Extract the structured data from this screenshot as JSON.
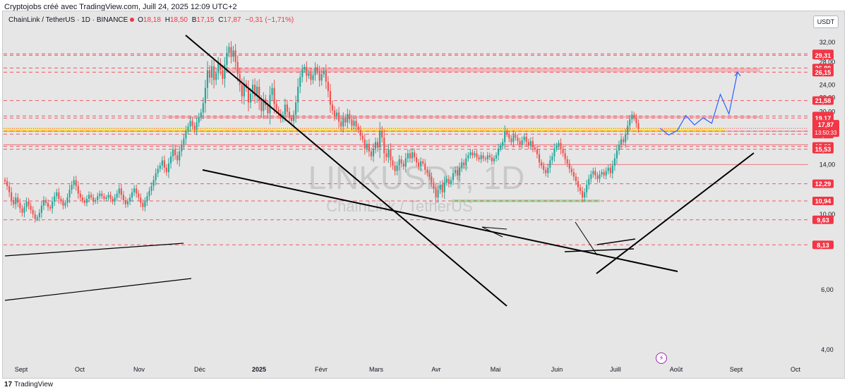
{
  "header": {
    "credit": "Cryptojobs créé avec TradingView.com, Juill 24, 2025 12:09 UTC+2"
  },
  "legend": {
    "symbol": "ChainLink / TetherUS · 1D · BINANCE",
    "o_label": "O",
    "o_value": "18,18",
    "h_label": "H",
    "h_value": "18,50",
    "b_label": "B",
    "b_value": "17,15",
    "c_label": "C",
    "c_value": "17,87",
    "change": "−0,31 (−1,71%)"
  },
  "unit_label": "USDT",
  "watermark": {
    "ticker": "LINKUSDT, 1D",
    "name": "ChainLink / TetherUS"
  },
  "footer": {
    "logo": "17",
    "brand": "TradingView"
  },
  "icons": {
    "indicator": "lightning-icon"
  },
  "colors": {
    "up": "#26a69a",
    "down": "#ef5350",
    "resistance": "#f23645",
    "projection": "#2962ff",
    "yellow_zone": "#ffeb3b",
    "green_zone": "#4caf50"
  },
  "chart_data": {
    "type": "candlestick",
    "y_axis": {
      "scale": "log",
      "ticks": [
        "32,00",
        "28,00",
        "24,00",
        "22,00",
        "20,00",
        "14,00",
        "10,00",
        "6,00",
        "4,00"
      ],
      "range": [
        3.6,
        40
      ]
    },
    "x_axis": {
      "labels": [
        "Sept",
        "Oct",
        "Nov",
        "Déc",
        "2025",
        "Févr",
        "Mars",
        "Avr",
        "Mai",
        "Juin",
        "Juill",
        "Août",
        "Sept",
        "Oct"
      ]
    },
    "price_lines": [
      {
        "label": "29,60",
        "value": 29.6
      },
      {
        "label": "29,31",
        "value": 29.31
      },
      {
        "label": "26,89",
        "value": 26.89
      },
      {
        "label": "26,15",
        "value": 26.15
      },
      {
        "label": "21,58",
        "value": 21.58
      },
      {
        "label": "19,44",
        "value": 19.44
      },
      {
        "label": "19,17",
        "value": 19.17
      },
      {
        "label": "17,54",
        "value": 17.54
      },
      {
        "label": "17,19",
        "value": 17.19
      },
      {
        "label": "15,83",
        "value": 15.83
      },
      {
        "label": "15,53",
        "value": 15.53
      },
      {
        "label": "12,29",
        "value": 12.29
      },
      {
        "label": "10,94",
        "value": 10.94
      },
      {
        "label": "9,63",
        "value": 9.63
      },
      {
        "label": "8,13",
        "value": 8.13
      }
    ],
    "current_price": {
      "label": "17,87",
      "value": 17.87,
      "countdown": "13:50:33"
    },
    "zones": [
      {
        "kind": "red",
        "from": 26.15,
        "to": 26.89
      },
      {
        "kind": "red",
        "from": 19.17,
        "to": 19.44
      },
      {
        "kind": "yellow",
        "from": 17.54,
        "to": 17.87
      },
      {
        "kind": "green",
        "from": 10.85,
        "to": 11.05
      }
    ],
    "series": [
      {
        "type": "candles",
        "closes": [
          12.5,
          12.1,
          11.6,
          11.0,
          10.7,
          11.2,
          10.8,
          10.4,
          10.1,
          10.5,
          10.9,
          10.6,
          10.3,
          10.0,
          9.7,
          9.8,
          10.1,
          10.6,
          11.0,
          10.8,
          10.5,
          10.4,
          10.9,
          11.3,
          11.6,
          11.1,
          10.9,
          10.6,
          10.8,
          11.2,
          11.8,
          12.2,
          12.6,
          12.1,
          11.5,
          11.2,
          11.0,
          10.8,
          11.1,
          11.4,
          11.2,
          10.9,
          11.0,
          11.3,
          11.5,
          11.3,
          11.1,
          11.2,
          11.4,
          11.1,
          10.9,
          11.2,
          11.5,
          11.9,
          11.4,
          11.0,
          10.7,
          10.9,
          11.2,
          11.6,
          11.9,
          11.5,
          11.2,
          10.8,
          10.5,
          10.9,
          11.3,
          11.7,
          12.1,
          12.6,
          13.2,
          13.6,
          13.9,
          14.4,
          13.7,
          13.3,
          14.1,
          14.8,
          15.5,
          14.9,
          14.4,
          15.3,
          16.0,
          16.7,
          17.6,
          18.1,
          18.8,
          18.2,
          17.7,
          18.6,
          19.3,
          19.9,
          21.2,
          23.5,
          26.5,
          25.2,
          27.2,
          24.8,
          26.0,
          27.8,
          26.5,
          25.0,
          27.5,
          29.8,
          31.0,
          29.0,
          30.3,
          28.0,
          25.8,
          24.0,
          22.2,
          24.2,
          23.5,
          21.3,
          22.6,
          24.0,
          22.2,
          23.7,
          21.5,
          20.1,
          21.8,
          20.9,
          19.8,
          22.4,
          23.5,
          21.1,
          20.3,
          19.8,
          19.1,
          19.6,
          21.0,
          20.0,
          19.2,
          18.8,
          19.6,
          21.3,
          23.7,
          25.3,
          26.6,
          27.1,
          25.5,
          26.0,
          24.8,
          25.6,
          27.0,
          26.3,
          24.7,
          25.8,
          26.4,
          24.5,
          23.0,
          21.0,
          20.2,
          19.4,
          19.9,
          18.7,
          18.1,
          19.2,
          18.6,
          19.7,
          19.0,
          18.2,
          18.8,
          18.1,
          17.7,
          17.0,
          16.6,
          15.6,
          16.1,
          15.3,
          14.8,
          15.6,
          16.3,
          15.7,
          17.6,
          16.8,
          15.1,
          14.7,
          15.5,
          14.4,
          13.9,
          13.4,
          13.9,
          14.5,
          14.1,
          13.8,
          14.6,
          15.1,
          14.6,
          15.2,
          14.7,
          14.2,
          13.8,
          14.3,
          14.1,
          13.5,
          13.2,
          12.9,
          12.4,
          11.9,
          11.2,
          11.8,
          12.2,
          11.6,
          12.4,
          12.7,
          12.3,
          12.6,
          13.2,
          13.5,
          13.0,
          13.7,
          14.2,
          13.9,
          14.6,
          14.9,
          15.2,
          14.9,
          15.1,
          14.7,
          14.5,
          14.9,
          14.6,
          14.5,
          14.9,
          14.7,
          14.3,
          14.6,
          14.9,
          15.6,
          15.9,
          16.3,
          17.5,
          17.2,
          16.7,
          16.3,
          17.1,
          16.8,
          16.4,
          16.0,
          16.5,
          16.9,
          16.3,
          15.9,
          16.4,
          15.7,
          15.5,
          15.0,
          14.2,
          13.9,
          13.5,
          13.2,
          13.7,
          14.4,
          14.8,
          15.6,
          15.9,
          16.2,
          15.5,
          15.1,
          14.5,
          14.1,
          13.6,
          13.3,
          12.9,
          12.5,
          12.0,
          11.7,
          11.2,
          11.6,
          12.2,
          12.7,
          13.1,
          13.4,
          13.0,
          12.7,
          13.1,
          13.3,
          13.0,
          13.4,
          13.7,
          13.2,
          13.9,
          14.6,
          15.4,
          16.0,
          16.6,
          16.3,
          17.2,
          18.2,
          19.0,
          19.6,
          19.2,
          18.5,
          17.87
        ]
      },
      {
        "type": "projection",
        "name": "",
        "values": [
          17.9,
          17.1,
          17.6,
          19.5,
          18.3,
          19.2,
          18.5,
          22.5,
          19.7,
          26.2
        ]
      }
    ]
  }
}
